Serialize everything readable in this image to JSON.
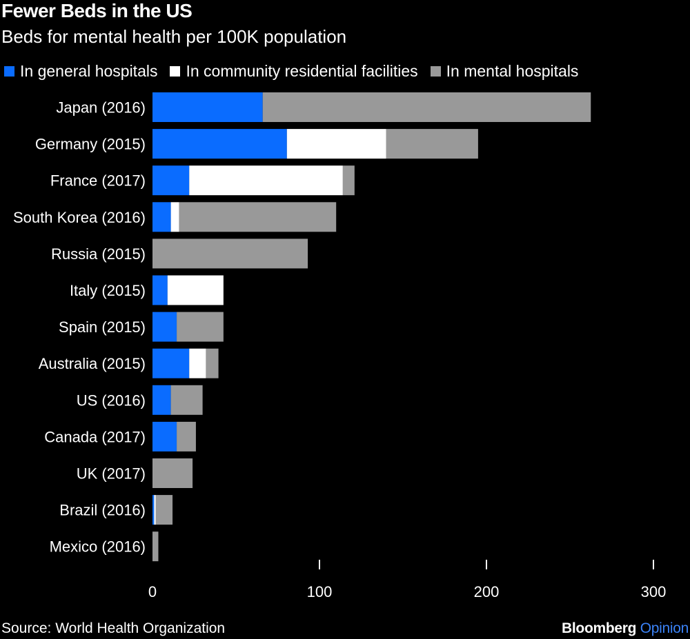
{
  "chart_data": {
    "type": "bar",
    "orientation": "horizontal",
    "stacked": true,
    "title": "Fewer Beds in the US",
    "subtitle": "Beds for mental health per 100K population",
    "categories": [
      "Japan (2016)",
      "Germany (2015)",
      "France (2017)",
      "South Korea (2016)",
      "Russia (2015)",
      "Italy (2015)",
      "Spain (2015)",
      "Australia (2015)",
      "US (2016)",
      "Canada (2017)",
      "UK (2017)",
      "Brazil (2016)",
      "Mexico (2016)"
    ],
    "series": [
      {
        "name": "In general hospitals",
        "color": "#0A6CFF",
        "values": [
          66,
          80.5,
          22,
          11,
          0,
          9,
          14.5,
          22,
          11,
          14.5,
          0,
          1,
          0
        ]
      },
      {
        "name": "In community residential facilities",
        "color": "#FFFFFF",
        "values": [
          0,
          59.5,
          92,
          5,
          0,
          33.5,
          0,
          10,
          0,
          0,
          0,
          1,
          0
        ]
      },
      {
        "name": "In mental hospitals",
        "color": "#999999",
        "values": [
          196.5,
          55,
          7,
          94,
          93,
          0,
          28,
          7.5,
          19,
          11.5,
          24,
          10,
          3.5
        ]
      }
    ],
    "xlim": [
      0,
      300
    ],
    "xticks": [
      "0",
      "100",
      "200",
      "300"
    ],
    "xtick_values": [
      0,
      100,
      200,
      300
    ],
    "xlabel": "",
    "ylabel": "",
    "grid": false,
    "legend_position": "top-left",
    "source": "Source: World Health Organization"
  },
  "brand": {
    "name": "Bloomberg",
    "accent": "Opinion"
  },
  "colors": {
    "background": "#000000",
    "text": "#FFFFFF",
    "brand_accent": "#3B82F6"
  }
}
